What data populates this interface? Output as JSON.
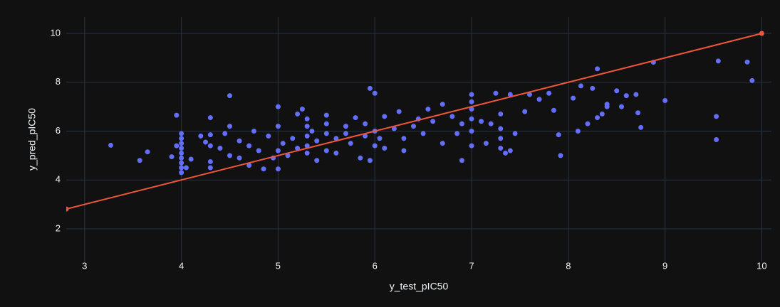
{
  "chart_data": {
    "type": "scatter",
    "xlabel": "y_test_pIC50",
    "ylabel": "y_pred_pIC50",
    "xlim": [
      2.81,
      10.1
    ],
    "ylim": [
      0.66,
      10.67
    ],
    "xticks": [
      3,
      4,
      5,
      6,
      7,
      8,
      9,
      10
    ],
    "yticks": [
      2,
      4,
      6,
      8,
      10
    ],
    "grid": true,
    "series": [
      {
        "mode": "markers",
        "color": "#636efa",
        "x": [
          4,
          4,
          4,
          4,
          4,
          4,
          4,
          4,
          4,
          3.27,
          3.57,
          3.65,
          3.9,
          3.95,
          3.95,
          4.05,
          4.1,
          4.2,
          4.25,
          4.3,
          4.3,
          4.3,
          4.3,
          4.3,
          4.4,
          4.45,
          4.5,
          4.5,
          4.5,
          4.6,
          4.6,
          4.7,
          4.7,
          4.75,
          4.8,
          4.85,
          4.9,
          4.95,
          5.0,
          5.0,
          5.0,
          5.0,
          5.05,
          5.1,
          5.15,
          5.2,
          5.2,
          5.25,
          5.3,
          5.3,
          5.3,
          5.3,
          5.3,
          5.35,
          5.4,
          5.4,
          5.5,
          5.5,
          5.5,
          5.5,
          5.6,
          5.6,
          5.7,
          5.7,
          5.75,
          5.8,
          5.85,
          5.9,
          5.9,
          5.95,
          5.95,
          6.0,
          6.0,
          6.0,
          6.05,
          6.1,
          6.1,
          6.2,
          6.25,
          6.3,
          6.3,
          6.4,
          6.45,
          6.5,
          6.55,
          6.6,
          6.7,
          6.7,
          6.8,
          6.85,
          6.9,
          6.9,
          7.0,
          7.0,
          7.0,
          7.0,
          7.0,
          7.0,
          7.1,
          7.15,
          7.2,
          7.25,
          7.3,
          7.3,
          7.3,
          7.3,
          7.35,
          7.4,
          7.4,
          7.45,
          7.55,
          7.6,
          7.7,
          7.8,
          7.85,
          7.9,
          7.92,
          8.05,
          8.1,
          8.13,
          8.2,
          8.25,
          8.3,
          8.3,
          8.35,
          8.4,
          8.4,
          8.5,
          8.55,
          8.6,
          8.7,
          8.72,
          8.75,
          8.88,
          9.0,
          9.53,
          9.53,
          9.55,
          9.85,
          9.9
        ],
        "y": [
          4.3,
          4.5,
          4.7,
          4.9,
          5.1,
          5.3,
          5.5,
          5.7,
          5.9,
          5.42,
          4.8,
          5.15,
          4.95,
          6.65,
          5.4,
          4.5,
          4.85,
          5.8,
          5.55,
          5.4,
          4.5,
          4.75,
          5.85,
          6.55,
          5.3,
          5.9,
          7.45,
          5.0,
          6.2,
          5.6,
          4.9,
          5.4,
          4.6,
          6.0,
          5.2,
          4.45,
          5.8,
          4.9,
          7.0,
          5.2,
          4.45,
          6.2,
          5.5,
          5.0,
          5.7,
          6.7,
          5.3,
          6.9,
          5.1,
          6.5,
          6.2,
          5.8,
          5.4,
          6.0,
          5.6,
          4.8,
          6.3,
          5.2,
          5.9,
          6.65,
          5.7,
          5.1,
          5.9,
          6.2,
          5.5,
          6.55,
          4.9,
          5.8,
          6.3,
          7.75,
          4.8,
          6.0,
          7.55,
          5.4,
          5.7,
          6.6,
          5.3,
          6.1,
          6.8,
          5.7,
          5.2,
          6.2,
          6.5,
          5.9,
          6.9,
          6.4,
          7.1,
          5.5,
          6.6,
          5.9,
          4.8,
          6.3,
          7.5,
          7.2,
          6.9,
          6.5,
          6.0,
          5.4,
          6.4,
          5.5,
          6.3,
          7.55,
          6.7,
          6.1,
          5.7,
          5.3,
          5.1,
          7.5,
          5.2,
          5.9,
          6.8,
          7.5,
          7.3,
          7.55,
          6.85,
          5.85,
          5.0,
          7.35,
          6.0,
          7.85,
          6.3,
          7.75,
          8.55,
          6.55,
          6.7,
          7.0,
          7.1,
          7.65,
          7.0,
          7.45,
          7.5,
          6.75,
          6.15,
          8.82,
          7.25,
          6.6,
          5.65,
          8.87,
          8.83,
          8.07
        ]
      },
      {
        "mode": "lines+markers",
        "color": "#ef553b",
        "x": [
          2.81,
          10
        ],
        "y": [
          2.81,
          10
        ]
      }
    ]
  }
}
